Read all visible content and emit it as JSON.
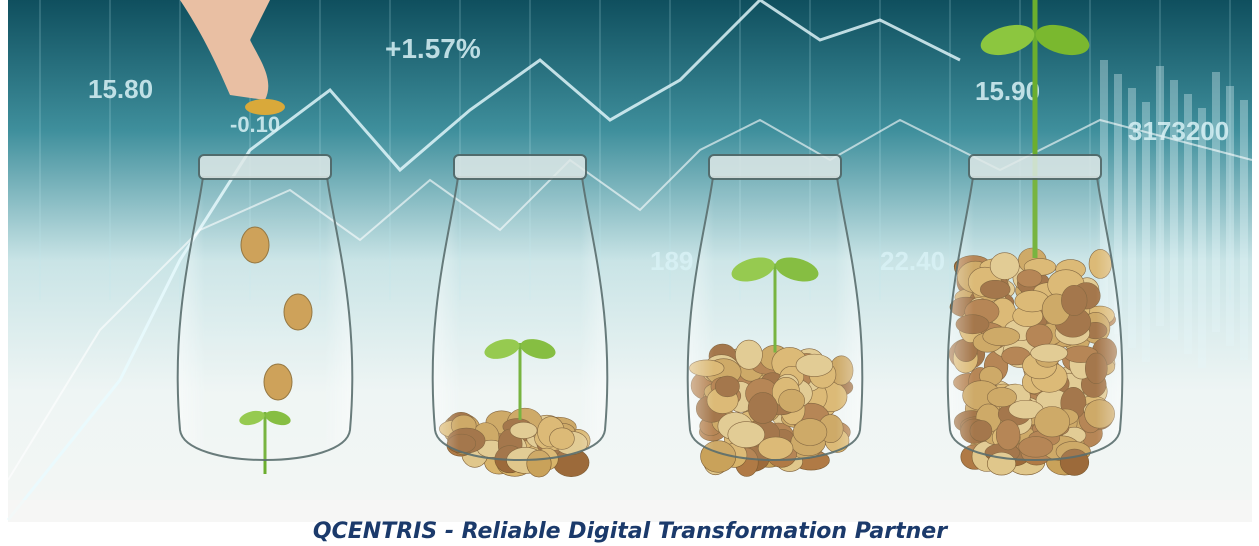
{
  "banner": {
    "background_numbers": [
      "15.80",
      "+1.57%",
      "15.90",
      "3173200",
      "-0.10",
      "189",
      "22.40"
    ]
  },
  "caption": "QCENTRIS - Reliable Digital Transformation Partner"
}
